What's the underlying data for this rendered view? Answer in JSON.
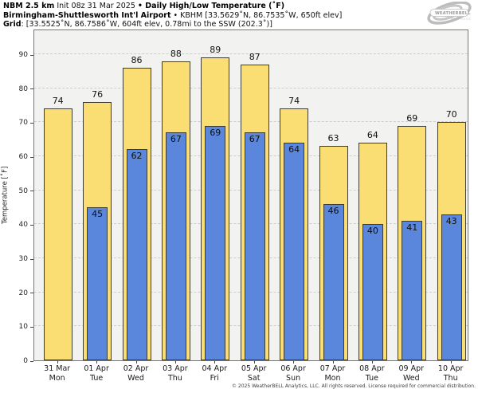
{
  "header": {
    "line1": {
      "model": "NBM 2.5 km",
      "init": " Init 08z 31 Mar 2025 ",
      "sep": "•",
      "product": " Daily High/Low Temperature (˚F)"
    },
    "line2": {
      "station": "Birmingham-Shuttlesworth Int'l Airport",
      "sep": " • ",
      "station_info": "KBHM [33.5629˚N, 86.7535˚W, 650ft elev]"
    },
    "line3": {
      "label": "Grid",
      "info": ": [33.5525˚N, 86.7586˚W, 604ft elev, 0.78mi to the SSW (202.3˚)]"
    },
    "logo": {
      "brand_left": "Weather",
      "brand_right": "BELL",
      "sub": "Analytics LLC"
    }
  },
  "chart_data": {
    "type": "bar",
    "title": "Daily High/Low Temperature (˚F)",
    "categories": [
      {
        "date": "31 Mar",
        "day": "Mon"
      },
      {
        "date": "01 Apr",
        "day": "Tue"
      },
      {
        "date": "02 Apr",
        "day": "Wed"
      },
      {
        "date": "03 Apr",
        "day": "Thu"
      },
      {
        "date": "04 Apr",
        "day": "Fri"
      },
      {
        "date": "05 Apr",
        "day": "Sat"
      },
      {
        "date": "06 Apr",
        "day": "Sun"
      },
      {
        "date": "07 Apr",
        "day": "Mon"
      },
      {
        "date": "08 Apr",
        "day": "Tue"
      },
      {
        "date": "09 Apr",
        "day": "Wed"
      },
      {
        "date": "10 Apr",
        "day": "Thu"
      }
    ],
    "series": [
      {
        "name": "High",
        "color": "#fade73",
        "values": [
          74,
          76,
          86,
          88,
          89,
          87,
          74,
          63,
          64,
          69,
          70
        ]
      },
      {
        "name": "Low",
        "color": "#5a87dc",
        "values": [
          null,
          45,
          62,
          67,
          69,
          67,
          64,
          46,
          40,
          41,
          43
        ]
      }
    ],
    "xlabel": "",
    "ylabel": "Temperature [˚F]",
    "yticks": [
      0,
      10,
      20,
      30,
      40,
      50,
      60,
      70,
      80,
      90
    ],
    "ylim": [
      0,
      97.5
    ],
    "grid": "horizontal-dashed",
    "legend": "none"
  },
  "footer": {
    "copyright": "© 2025 WeatherBELL Analytics, LLC. All rights reserved. License required for commercial distribution."
  },
  "colors": {
    "high_bar": "#fade73",
    "low_bar": "#5a87dc",
    "bar_border": "#3c3c33",
    "plot_bg": "#f2f2f1",
    "grid_line": "#cdcdcd",
    "logo_gray": "#b3b3b3"
  }
}
